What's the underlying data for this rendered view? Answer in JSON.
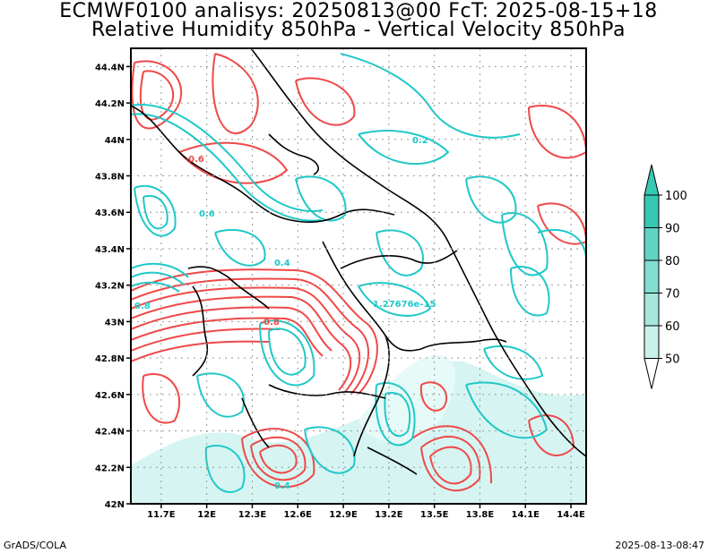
{
  "title_line1": "ECMWF0100 analisys: 20250813@00 FcT: 2025-08-15+18",
  "title_line2": "Relative Humidity 850hPa - Vertical Velocity 850hPa",
  "footer_left": "GrADS/COLA",
  "footer_right": "2025-08-13-08:47",
  "map": {
    "lon_ticks": [
      "11.7E",
      "12E",
      "12.3E",
      "12.6E",
      "12.9E",
      "13.2E",
      "13.5E",
      "13.8E",
      "14.1E",
      "14.4E"
    ],
    "lat_ticks": [
      "44.4N",
      "44.2N",
      "44N",
      "43.8N",
      "43.6N",
      "43.4N",
      "43.2N",
      "43N",
      "42.8N",
      "42.6N",
      "42.4N",
      "42.2N",
      "42N"
    ],
    "lon_range": [
      11.5,
      14.5
    ],
    "lat_range": [
      42.0,
      44.5
    ],
    "contour_labels": [
      "0.2",
      "-0.6",
      "0.6",
      "0.4",
      "0.8",
      "-0.8",
      "1.27676e-15",
      "0.4"
    ],
    "colors": {
      "positive": "#1fc8c8",
      "negative": "#f04848",
      "border": "#000000",
      "grid": "#999999"
    }
  },
  "colorbar": {
    "levels": [
      "100",
      "90",
      "80",
      "70",
      "60",
      "50"
    ],
    "colors": [
      "#37c8b4",
      "#5fd4c3",
      "#82ddd0",
      "#a5e7dd",
      "#c8f1eb",
      "#ffffff"
    ]
  }
}
